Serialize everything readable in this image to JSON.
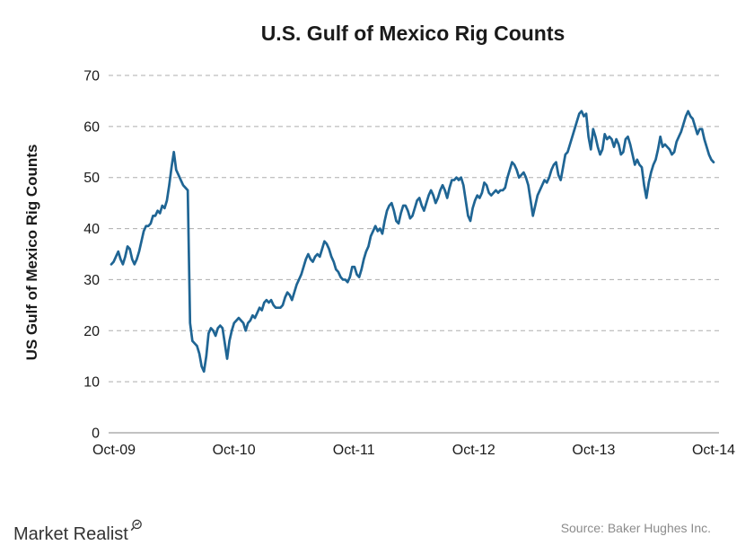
{
  "header": {
    "title": "U.S. Gulf of Mexico Rig Counts"
  },
  "footer": {
    "brand": "Market Realist",
    "brand_icon": "magnifier-chart-icon",
    "source": "Source: Baker Hughes Inc."
  },
  "colors": {
    "line": "#1F6594",
    "grid": "#ADADAD",
    "axis": "#9E9E9E",
    "text": "#1A1A1A",
    "source_text": "#8C8C8C",
    "background": "#FFFFFF"
  },
  "chart_data": {
    "type": "line",
    "title": "U.S. Gulf of Mexico Rig Counts",
    "xlabel": "",
    "ylabel": "US Gulf of Mexico Rig Counts",
    "x_tick_labels": [
      "Oct-09",
      "Oct-10",
      "Oct-11",
      "Oct-12",
      "Oct-13",
      "Oct-14"
    ],
    "x_cadence": "weekly",
    "x_range": "Oct-2009 to Oct-2014",
    "y_ticks": [
      0,
      10,
      20,
      30,
      40,
      50,
      60,
      70
    ],
    "ylim": [
      0,
      70
    ],
    "grid": {
      "horizontal": true,
      "style": "dashed",
      "color": "#ADADAD"
    },
    "legend": "none",
    "series": [
      {
        "name": "US Gulf of Mexico rig count",
        "color": "#1F6594",
        "values": [
          33,
          33.5,
          34.5,
          35.5,
          34,
          33,
          34.5,
          36.5,
          36,
          34,
          33,
          34,
          35.5,
          37.5,
          39.5,
          40.5,
          40.5,
          41,
          42.5,
          42.5,
          43.5,
          43,
          44.5,
          44,
          45.5,
          48.5,
          52,
          55,
          51.5,
          50.5,
          49.5,
          48.5,
          48,
          47.5,
          21.5,
          18,
          17.5,
          17,
          15.5,
          13,
          12,
          15,
          19.5,
          20.5,
          20,
          19,
          20.5,
          21,
          20.5,
          17.5,
          14.5,
          18,
          20,
          21.5,
          22,
          22.5,
          22,
          21.5,
          20,
          21.5,
          22,
          23,
          22.5,
          23.5,
          24.5,
          24,
          25.5,
          26,
          25.5,
          26,
          25,
          24.5,
          24.5,
          24.5,
          25,
          26.5,
          27.5,
          27,
          26,
          27.5,
          29,
          30,
          31,
          32.5,
          34,
          35,
          34,
          33.5,
          34.5,
          35,
          34.5,
          36,
          37.5,
          37,
          36,
          34.5,
          33.5,
          32,
          31.5,
          30.5,
          30,
          30,
          29.5,
          30.5,
          32.5,
          32.5,
          31,
          30.5,
          32,
          34,
          35.5,
          36.5,
          38.5,
          39.5,
          40.5,
          39.5,
          40,
          39,
          41.5,
          43.5,
          44.5,
          45,
          43.5,
          41.5,
          41,
          43,
          44.5,
          44.5,
          43.5,
          42,
          42.5,
          44,
          45.5,
          46,
          44.5,
          43.5,
          45,
          46.5,
          47.5,
          46.5,
          45,
          46,
          47.5,
          48.5,
          47.5,
          46,
          48,
          49.5,
          49.5,
          50,
          49.5,
          50,
          48.5,
          45.5,
          42.5,
          41.5,
          44,
          45.5,
          46.5,
          46,
          47,
          49,
          48.5,
          47,
          46.5,
          47,
          47.5,
          47,
          47.5,
          47.5,
          48,
          50,
          51.5,
          53,
          52.5,
          51.5,
          50,
          50.5,
          51,
          50,
          48.5,
          45.5,
          42.5,
          44.5,
          46.5,
          47.5,
          48.5,
          49.5,
          49,
          50,
          51.5,
          52.5,
          53,
          50.5,
          49.5,
          52,
          54.5,
          55,
          56.5,
          58,
          59.5,
          61,
          62.5,
          63,
          62,
          62.5,
          58,
          55.5,
          59.5,
          58,
          56,
          54.5,
          55.5,
          58.5,
          57.5,
          58,
          57.5,
          56,
          57.5,
          56.5,
          54.5,
          55,
          57.5,
          58,
          56.5,
          54.5,
          52.5,
          53.5,
          52.5,
          52,
          48.5,
          46,
          49,
          51,
          52.5,
          53.5,
          55.5,
          58,
          56,
          56.5,
          56,
          55.5,
          54.5,
          55,
          57,
          58,
          59,
          60.5,
          62,
          63,
          62,
          61.5,
          60,
          58.5,
          59.5,
          59.5,
          57.5,
          56,
          54.5,
          53.5,
          53
        ]
      }
    ]
  }
}
